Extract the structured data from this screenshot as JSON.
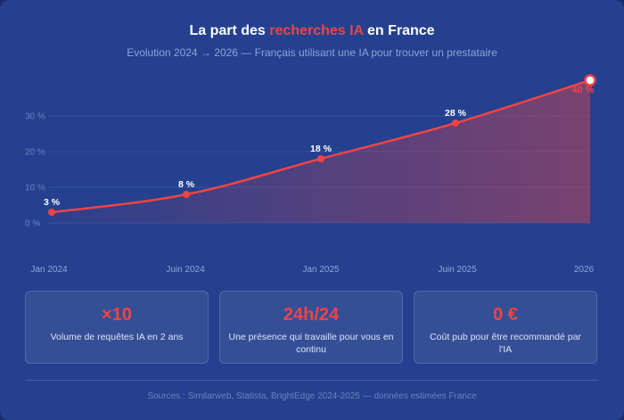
{
  "title": {
    "before": "La part des ",
    "highlight": "recherches IA",
    "after": " en France"
  },
  "subtitle": "Evolution 2024 → 2026 — Français utilisant une IA pour trouver un prestataire",
  "chart_data": {
    "type": "area",
    "categories": [
      "Jan 2024",
      "Juin 2024",
      "Jan 2025",
      "Juin 2025",
      "2026"
    ],
    "values": [
      3,
      8,
      18,
      28,
      40
    ],
    "data_labels": [
      "3 %",
      "8 %",
      "18 %",
      "28 %",
      "40 %"
    ],
    "y_ticks": [
      {
        "value": 0,
        "label": "0 %"
      },
      {
        "value": 10,
        "label": "10 %"
      },
      {
        "value": 20,
        "label": "20 %"
      },
      {
        "value": 30,
        "label": "30 %"
      }
    ],
    "ylim": [
      0,
      40
    ],
    "grid": true,
    "colors": {
      "line": "#ef4444",
      "grid": "#3a56a3",
      "last_point_fill": "#ffffff"
    }
  },
  "stats": [
    {
      "value": "×10",
      "label": "Volume de requêtes IA en 2 ans"
    },
    {
      "value": "24h/24",
      "label": "Une présence qui travaille pour vous en continu"
    },
    {
      "value": "0 €",
      "label": "Coût pub pour être recommandé par l'IA"
    }
  ],
  "sources": "Sources : Similarweb, Statista, BrightEdge 2024-2025 — données estimées France"
}
